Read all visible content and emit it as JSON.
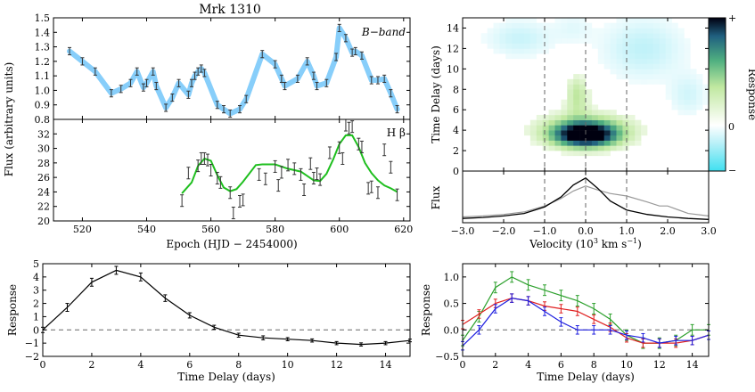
{
  "figure": {
    "title": "Mrk 1310",
    "colors": {
      "light_curve_fill": "#87CEFA",
      "fit_line": "#1fbf1f",
      "profile_rms": "#999999",
      "dashed": "#666666"
    }
  },
  "chart_data": [
    {
      "id": "continuum",
      "type": "line",
      "annotation": "B−band",
      "xlim": [
        511,
        622
      ],
      "ylim": [
        0.8,
        1.5
      ],
      "yticks": [
        "0.8",
        "0.9",
        "1.0",
        "1.1",
        "1.2",
        "1.3",
        "1.4",
        "1.5"
      ],
      "xticks": [],
      "x": [
        516,
        520,
        524,
        529,
        532,
        535,
        537,
        539,
        540,
        542,
        543,
        546,
        548,
        550,
        553,
        554,
        555,
        556,
        557,
        558,
        562,
        564,
        566,
        569,
        571,
        576,
        580,
        582,
        583,
        587,
        590,
        592,
        593,
        596,
        599,
        600,
        602,
        604,
        605,
        607,
        610,
        612,
        614,
        616,
        618
      ],
      "y": [
        1.27,
        1.2,
        1.13,
        0.98,
        1.01,
        1.05,
        1.13,
        1.02,
        1.05,
        1.13,
        1.03,
        0.88,
        0.95,
        1.05,
        0.97,
        1.05,
        1.1,
        1.13,
        1.15,
        1.12,
        0.9,
        0.87,
        0.84,
        0.87,
        0.94,
        1.25,
        1.18,
        1.08,
        1.03,
        1.08,
        1.2,
        1.1,
        1.03,
        1.05,
        1.23,
        1.43,
        1.36,
        1.26,
        1.27,
        1.24,
        1.07,
        1.07,
        1.08,
        0.98,
        0.87
      ],
      "yerr": 0.025
    },
    {
      "id": "hbeta",
      "type": "line",
      "annotation": "H β",
      "xlabel": "Epoch (HJD − 2454000)",
      "xlim": [
        511,
        622
      ],
      "ylim": [
        20,
        34
      ],
      "yticks": [
        "20",
        "22",
        "24",
        "26",
        "28",
        "30",
        "32"
      ],
      "xticks": [
        "520",
        "540",
        "560",
        "580",
        "600",
        "620"
      ],
      "x": [
        551,
        553,
        556,
        557,
        558,
        559,
        560,
        562,
        563,
        566,
        567,
        569,
        570,
        575,
        577,
        580,
        581,
        582,
        584,
        586,
        588,
        589,
        591,
        592,
        593,
        594,
        597,
        600,
        601,
        602,
        603,
        604,
        606,
        607,
        609,
        610,
        612,
        614,
        616,
        618
      ],
      "y": [
        22.8,
        26.6,
        27.6,
        28.6,
        28.6,
        28.4,
        27.0,
        25.9,
        25.3,
        23.9,
        21.1,
        22.7,
        22.9,
        26.4,
        25.8,
        27.5,
        24.9,
        26.7,
        27.7,
        27.2,
        26.4,
        24.3,
        27.9,
        25.9,
        26.5,
        25.7,
        29.4,
        30.1,
        28.6,
        33.2,
        32.8,
        33.0,
        30.6,
        30.2,
        24.5,
        24.7,
        23.9,
        29.8,
        27.4,
        23.6
      ],
      "yerr": 0.8,
      "fit_x": [
        551,
        554,
        556,
        558,
        560,
        562,
        564,
        566,
        568,
        570,
        574,
        576,
        580,
        584,
        588,
        592,
        594,
        596,
        598,
        600,
        602,
        604,
        606,
        608,
        610,
        612,
        614,
        616,
        618
      ],
      "fit_y": [
        23.8,
        25.3,
        27.6,
        28.6,
        28.3,
        26.3,
        24.6,
        24.1,
        24.4,
        25.4,
        27.7,
        27.8,
        27.8,
        27.2,
        26.8,
        25.6,
        25.5,
        26.5,
        28.4,
        30.6,
        31.8,
        31.8,
        30.2,
        28.0,
        26.6,
        25.6,
        24.9,
        24.5,
        24.0
      ]
    },
    {
      "id": "vdm",
      "type": "heatmap",
      "colorbar_label": "Response",
      "colorbar_ticks": [
        "+",
        "0",
        "−"
      ],
      "ylabel": "Time Delay (days)",
      "xlim": [
        -3.0,
        3.0
      ],
      "ylim": [
        0,
        15
      ],
      "yticks": [
        "0",
        "2",
        "4",
        "6",
        "8",
        "10",
        "12",
        "14"
      ],
      "dashed_x": [
        -1.0,
        0.0,
        1.0
      ]
    },
    {
      "id": "profile",
      "type": "line",
      "ylabel": "Flux",
      "xlabel": "Velocity (10³ km s⁻¹)",
      "xlim": [
        -3.0,
        3.0
      ],
      "xticks": [
        "−3.0",
        "−2.0",
        "−1.0",
        "0.0",
        "1.0",
        "2.0",
        "3.0"
      ],
      "series": [
        {
          "x": [
            -3.0,
            -2.5,
            -2.0,
            -1.5,
            -1.0,
            -0.6,
            -0.3,
            0.0,
            0.3,
            0.6,
            1.0,
            1.5,
            2.0,
            2.5,
            3.0
          ],
          "y": [
            0.05,
            0.07,
            0.1,
            0.15,
            0.28,
            0.48,
            0.72,
            0.86,
            0.65,
            0.4,
            0.22,
            0.13,
            0.08,
            0.05,
            0.03
          ]
        },
        {
          "x": [
            -3.0,
            -2.5,
            -2.0,
            -1.5,
            -1.0,
            -0.6,
            -0.3,
            0.0,
            0.3,
            0.6,
            1.0,
            1.5,
            1.8,
            2.0,
            2.5,
            3.0
          ],
          "y": [
            0.08,
            0.1,
            0.13,
            0.18,
            0.3,
            0.45,
            0.6,
            0.7,
            0.62,
            0.55,
            0.5,
            0.38,
            0.3,
            0.3,
            0.15,
            0.1
          ]
        }
      ]
    },
    {
      "id": "lag_total",
      "type": "line",
      "ylabel": "Response",
      "xlabel": "Time Delay (days)",
      "xlim": [
        0,
        15
      ],
      "ylim": [
        -2,
        5
      ],
      "yticks": [
        "−2",
        "−1",
        "0",
        "1",
        "2",
        "3",
        "4",
        "5"
      ],
      "xticks": [
        "0",
        "2",
        "4",
        "6",
        "8",
        "10",
        "12",
        "14"
      ],
      "x": [
        0,
        1,
        2,
        3,
        4,
        5,
        6,
        7,
        8,
        9,
        10,
        11,
        12,
        13,
        14,
        15
      ],
      "y": [
        0.0,
        1.7,
        3.6,
        4.5,
        4.0,
        2.4,
        1.1,
        0.2,
        -0.4,
        -0.6,
        -0.7,
        -0.8,
        -1.0,
        -1.1,
        -1.0,
        -0.8
      ],
      "yerr": [
        0.2,
        0.3,
        0.3,
        0.3,
        0.3,
        0.25,
        0.2,
        0.15,
        0.15,
        0.15,
        0.12,
        0.12,
        0.12,
        0.12,
        0.12,
        0.1
      ]
    },
    {
      "id": "lag_bins",
      "type": "line",
      "ylabel": "Response",
      "xlabel": "Time Delay (days)",
      "xlim": [
        0,
        15
      ],
      "ylim": [
        -0.5,
        1.25
      ],
      "yticks": [
        "−0.5",
        "0.0",
        "0.5",
        "1.0"
      ],
      "xticks": [
        "0",
        "2",
        "4",
        "6",
        "8",
        "10",
        "12",
        "14"
      ],
      "x": [
        0,
        1,
        2,
        3,
        4,
        5,
        6,
        7,
        8,
        9,
        10,
        11,
        12,
        13,
        14,
        15
      ],
      "series": [
        {
          "color": "#2ca02c",
          "y": [
            -0.2,
            0.25,
            0.8,
            1.0,
            0.85,
            0.75,
            0.65,
            0.55,
            0.4,
            0.2,
            -0.1,
            -0.25,
            -0.25,
            -0.2,
            0.0,
            0.0
          ],
          "yerr": 0.1
        },
        {
          "color": "#e02020",
          "y": [
            0.1,
            0.3,
            0.5,
            0.6,
            0.55,
            0.45,
            0.4,
            0.35,
            0.2,
            0.05,
            -0.15,
            -0.25,
            -0.25,
            -0.25,
            -0.2,
            -0.1
          ],
          "yerr": 0.08
        },
        {
          "color": "#1f1fdf",
          "y": [
            -0.3,
            0.0,
            0.4,
            0.6,
            0.55,
            0.35,
            0.15,
            0.0,
            0.0,
            0.0,
            -0.1,
            -0.15,
            -0.25,
            -0.2,
            -0.2,
            -0.1
          ],
          "yerr": 0.08
        }
      ]
    }
  ]
}
